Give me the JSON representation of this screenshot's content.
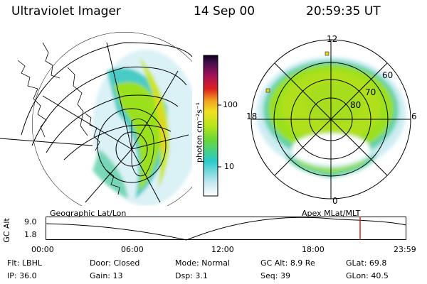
{
  "header": {
    "instrument": "Ultraviolet Imager",
    "date": "14 Sep 00",
    "time": "20:59:35 UT"
  },
  "colorbar": {
    "unit_label": "photon cm⁻²s⁻¹",
    "ticks": [
      "100",
      "10"
    ]
  },
  "polar_plot": {
    "mlt_labels": [
      "12",
      "18",
      "6",
      "0"
    ],
    "lat_labels": [
      "60",
      "70",
      "80"
    ]
  },
  "map_labels": {
    "left": "Geographic Lat/Lon",
    "right": "Apex  MLat/MLT"
  },
  "altitude_plot": {
    "ylabel": "GC Alt",
    "y_ticks": [
      "9.0",
      "1.8"
    ],
    "x_ticks": [
      "00:00",
      "06:00",
      "12:00",
      "18:00",
      "23:59"
    ],
    "marker_time": "20:59"
  },
  "status": {
    "row1": [
      {
        "label": "Flt:",
        "value": "LBHL"
      },
      {
        "label": "Door:",
        "value": "Closed"
      },
      {
        "label": "Mode:",
        "value": "Normal"
      },
      {
        "label": "GC Alt:",
        "value": "8.9 Re"
      },
      {
        "label": "GLat:",
        "value": "69.8"
      }
    ],
    "row2": [
      {
        "label": "IP:",
        "value": "36.0"
      },
      {
        "label": "Gain:",
        "value": "13"
      },
      {
        "label": "Dsp:",
        "value": "3.1"
      },
      {
        "label": "Seq:",
        "value": "39"
      },
      {
        "label": "GLon:",
        "value": "40.5"
      }
    ]
  },
  "colors": {
    "aurora_core": "#9be01c",
    "aurora_mid": "#c8e81e",
    "aurora_edge": "#39c9c2",
    "aurora_faint": "#bfe8f0",
    "marker": "#e0201c"
  }
}
